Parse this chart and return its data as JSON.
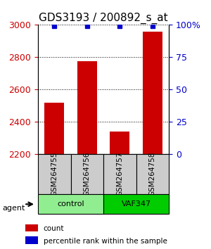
{
  "title": "GDS3193 / 200892_s_at",
  "samples": [
    "GSM264755",
    "GSM264756",
    "GSM264757",
    "GSM264758"
  ],
  "counts": [
    2520,
    2775,
    2340,
    2960
  ],
  "percentile_ranks": [
    99,
    99,
    99,
    99
  ],
  "ylim_left": [
    2200,
    3000
  ],
  "ylim_right": [
    0,
    100
  ],
  "yticks_left": [
    2200,
    2400,
    2600,
    2800,
    3000
  ],
  "yticks_right": [
    0,
    25,
    50,
    75,
    100
  ],
  "ytick_labels_right": [
    "0",
    "25",
    "50",
    "75",
    "100%"
  ],
  "bar_color": "#cc0000",
  "dot_color": "#0000cc",
  "grid_color": "#000000",
  "bar_width": 0.6,
  "groups": [
    {
      "label": "control",
      "samples": [
        0,
        1
      ],
      "color": "#90ee90"
    },
    {
      "label": "VAF347",
      "samples": [
        2,
        3
      ],
      "color": "#00cc00"
    }
  ],
  "agent_label": "agent",
  "legend_count_label": "count",
  "legend_pct_label": "percentile rank within the sample",
  "xlabel_rotation": 90,
  "sample_box_color": "#cccccc",
  "title_fontsize": 11,
  "tick_fontsize": 9,
  "label_fontsize": 9
}
